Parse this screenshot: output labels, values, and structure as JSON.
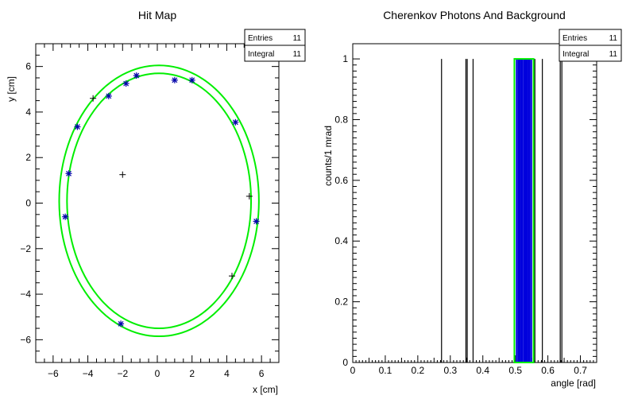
{
  "chart_data": [
    {
      "type": "scatter",
      "title": "Hit Map",
      "xlabel": "x [cm]",
      "ylabel": "y [cm]",
      "xlim": [
        -7,
        7
      ],
      "ylim": [
        -7,
        7
      ],
      "xticks": [
        -6,
        -4,
        -2,
        0,
        2,
        4,
        6
      ],
      "yticks": [
        -6,
        -4,
        -2,
        0,
        2,
        4,
        6
      ],
      "stats": {
        "entries_label": "Entries",
        "entries": "11",
        "integral_label": "Integral",
        "integral": "11"
      },
      "rings": [
        {
          "cx": 0.1,
          "cy": 0.1,
          "rx": 5.3,
          "ry": 5.6
        },
        {
          "cx": 0.1,
          "cy": 0.1,
          "rx": 5.75,
          "ry": 5.95
        }
      ],
      "signal_points": [
        [
          -5.1,
          1.3
        ],
        [
          -5.3,
          -0.6
        ],
        [
          -4.6,
          3.35
        ],
        [
          -2.8,
          4.7
        ],
        [
          -1.8,
          5.25
        ],
        [
          -1.2,
          5.6
        ],
        [
          1.0,
          5.4
        ],
        [
          2.0,
          5.4
        ],
        [
          4.5,
          3.55
        ],
        [
          5.7,
          -0.8
        ],
        [
          -2.1,
          -5.3
        ]
      ],
      "background_points": [
        [
          -3.7,
          4.6
        ],
        [
          -2.0,
          1.25
        ],
        [
          5.3,
          0.3
        ],
        [
          4.3,
          -3.2
        ]
      ],
      "colors": {
        "ring": "#00ee00",
        "signal": "#0000aa",
        "background": "#000000"
      }
    },
    {
      "type": "bar",
      "title": "Cherenkov Photons And Background",
      "xlabel": "angle [rad]",
      "ylabel": "counts/1 mrad",
      "xlim": [
        0,
        0.75
      ],
      "ylim": [
        0,
        1.05
      ],
      "xticks": [
        0,
        0.1,
        0.2,
        0.3,
        0.4,
        0.5,
        0.6,
        0.7
      ],
      "yticks": [
        0,
        0.2,
        0.4,
        0.6,
        0.8,
        1
      ],
      "stats": {
        "entries_label": "Entries",
        "entries": "11",
        "integral_label": "Integral",
        "integral": "11"
      },
      "window": [
        0.497,
        0.556
      ],
      "background_bins": [
        0.273,
        0.348,
        0.352,
        0.37,
        0.56,
        0.583,
        0.638,
        0.643
      ],
      "signal_bins": [
        0.504,
        0.509,
        0.513,
        0.518,
        0.522,
        0.527,
        0.531,
        0.535,
        0.54,
        0.544,
        0.549
      ],
      "values_each": 1,
      "colors": {
        "window": "#00ee00",
        "signal": "#0000dd",
        "background": "#000000"
      }
    }
  ]
}
